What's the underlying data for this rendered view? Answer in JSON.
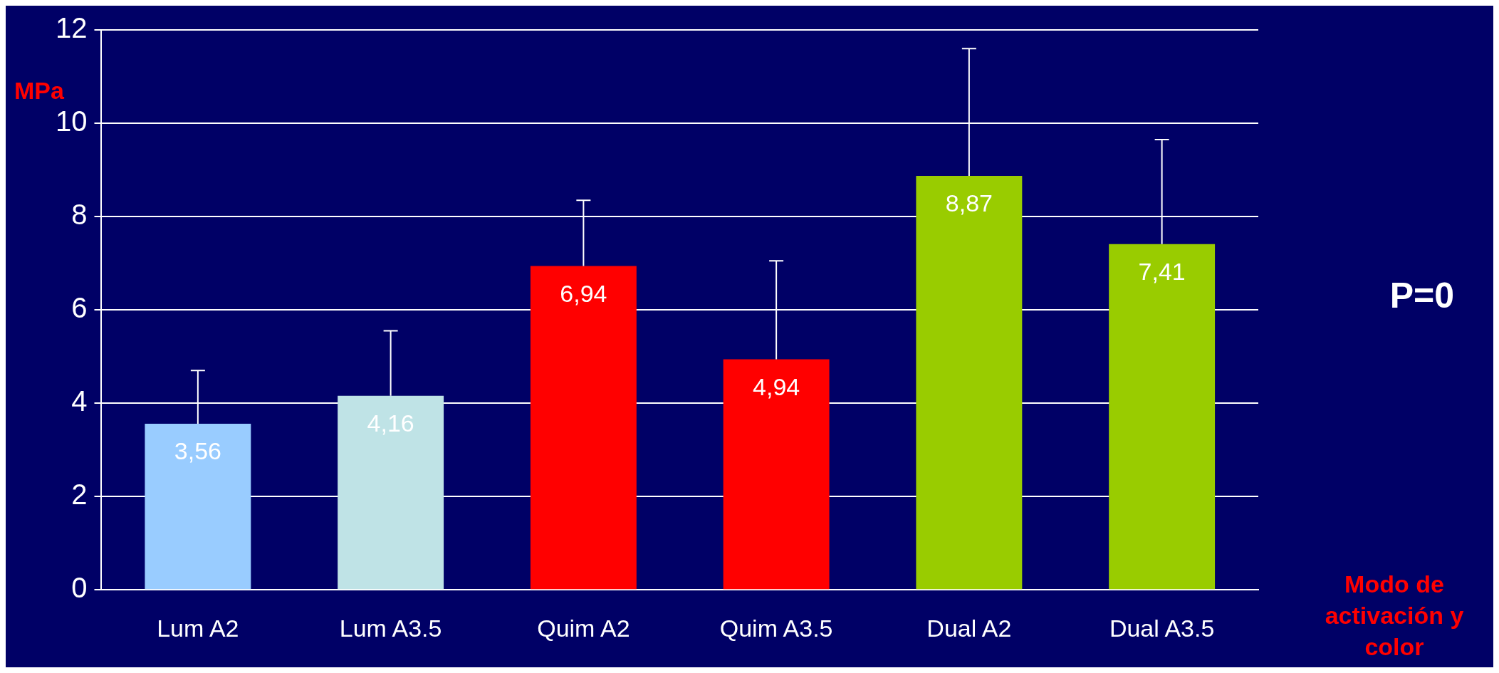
{
  "chart_data": {
    "type": "bar",
    "ylabel": "MPa",
    "xlabel": "Modo de activación y color",
    "categories": [
      "Lum A2",
      "Lum A3.5",
      "Quim A2",
      "Quim A3.5",
      "Dual A2",
      "Dual A3.5"
    ],
    "values": [
      3.56,
      4.16,
      6.94,
      4.94,
      8.87,
      7.41
    ],
    "value_labels": [
      "3,56",
      "4,16",
      "6,94",
      "4,94",
      "8,87",
      "7,41"
    ],
    "errors": [
      [
        3.56,
        4.7
      ],
      [
        4.16,
        5.55
      ],
      [
        6.94,
        8.35
      ],
      [
        4.94,
        7.05
      ],
      [
        8.87,
        11.6
      ],
      [
        7.41,
        9.65
      ]
    ],
    "colors": [
      "#99ccff",
      "#bfe3e6",
      "#ff0000",
      "#ff0000",
      "#99cc00",
      "#99cc00"
    ],
    "ylim": [
      0,
      12
    ],
    "yticks": [
      0,
      2,
      4,
      6,
      8,
      10,
      12
    ],
    "grid": "y",
    "annotations": [
      "P=0"
    ]
  }
}
